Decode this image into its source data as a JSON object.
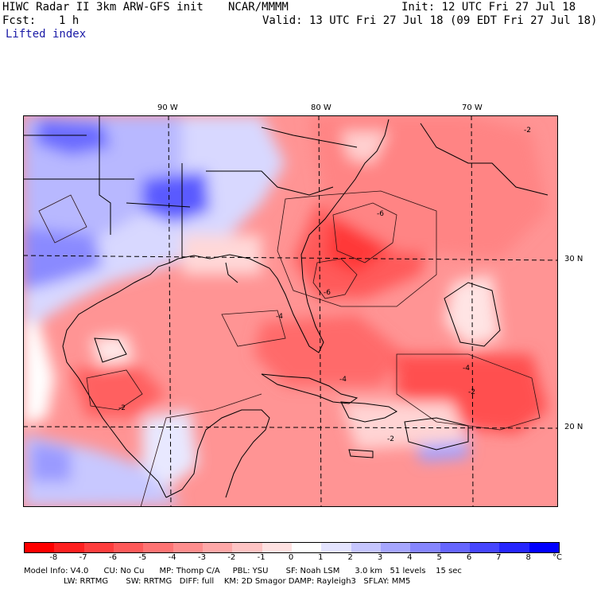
{
  "header": {
    "title_left": "HIWC Radar II 3km ARW-GFS init",
    "org": "NCAR/MMMM",
    "init": "Init: 12 UTC Fri 27 Jul 18",
    "fcst_label": "Fcst:",
    "fcst_value": "1 h",
    "valid": "Valid: 13 UTC Fri 27 Jul 18 (09 EDT Fri 27 Jul 18)",
    "field_name": "Lifted index"
  },
  "map": {
    "lon_labels": [
      "90 W",
      "80 W",
      "70 W"
    ],
    "lat_labels": [
      "30 N",
      "20 N"
    ],
    "contour_labels": [
      "-6",
      "-6",
      "-4",
      "-4",
      "-2",
      "-2",
      "-2",
      "-4",
      "-2"
    ]
  },
  "colorbar": {
    "labels": [
      "-8",
      "-7",
      "-6",
      "-5",
      "-4",
      "-3",
      "-2",
      "-1",
      "0",
      "1",
      "2",
      "3",
      "4",
      "5",
      "6",
      "7",
      "8"
    ],
    "unit": "°C",
    "colors": [
      "#ff0000",
      "#ff2020",
      "#ff3e3e",
      "#ff5a5a",
      "#ff7474",
      "#ff8e8e",
      "#ffa8a8",
      "#ffc4c4",
      "#ffe2e2",
      "#ffffff",
      "#e4e4ff",
      "#c6c6ff",
      "#a6a6ff",
      "#8686ff",
      "#6666ff",
      "#4646ff",
      "#2626ff",
      "#0000ff"
    ]
  },
  "model_info": {
    "line1": "Model Info: V4.0      CU: No Cu      MP: Thomp C/A     PBL: YSU       SF: Noah LSM      3.0 km   51 levels    15 sec",
    "line2": "LW: RRTMG       SW: RRTMG   DIFF: full    KM: 2D Smagor DAMP: Rayleigh3   SFLAY: MM5"
  }
}
